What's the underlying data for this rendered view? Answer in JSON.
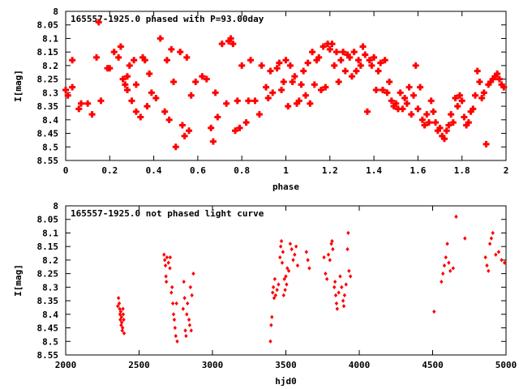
{
  "chart_data": [
    {
      "type": "scatter",
      "title": "165557-1925.0 phased with P=93.00day",
      "xlabel": "phase",
      "ylabel": "I[mag]",
      "xlim": [
        0,
        2
      ],
      "ylim": [
        8.55,
        8
      ],
      "y_inverted": true,
      "grid": false,
      "legend": "none",
      "marker": "filled-plus",
      "color": "#ff0000",
      "x_ticks": [
        {
          "value": 0,
          "label": "0"
        },
        {
          "value": 0.2,
          "label": "0.2"
        },
        {
          "value": 0.4,
          "label": "0.4"
        },
        {
          "value": 0.6,
          "label": "0.6"
        },
        {
          "value": 0.8,
          "label": "0.8"
        },
        {
          "value": 1,
          "label": "1"
        },
        {
          "value": 1.2,
          "label": "1.2"
        },
        {
          "value": 1.4,
          "label": "1.4"
        },
        {
          "value": 1.6,
          "label": "1.6"
        },
        {
          "value": 1.8,
          "label": "1.8"
        },
        {
          "value": 2,
          "label": "2"
        }
      ],
      "y_ticks": [
        {
          "value": 8,
          "label": "8"
        },
        {
          "value": 8.05,
          "label": "8.05"
        },
        {
          "value": 8.1,
          "label": "8.1"
        },
        {
          "value": 8.15,
          "label": "8.15"
        },
        {
          "value": 8.2,
          "label": "8.2"
        },
        {
          "value": 8.25,
          "label": "8.25"
        },
        {
          "value": 8.3,
          "label": "8.3"
        },
        {
          "value": 8.35,
          "label": "8.35"
        },
        {
          "value": 8.4,
          "label": "8.4"
        },
        {
          "value": 8.45,
          "label": "8.45"
        },
        {
          "value": 8.5,
          "label": "8.5"
        },
        {
          "value": 8.55,
          "label": "8.55"
        }
      ],
      "points": [
        [
          0.0,
          8.29
        ],
        [
          0.01,
          8.31
        ],
        [
          0.03,
          8.28
        ],
        [
          0.03,
          8.18
        ],
        [
          0.06,
          8.36
        ],
        [
          0.07,
          8.34
        ],
        [
          0.1,
          8.34
        ],
        [
          0.12,
          8.38
        ],
        [
          0.14,
          8.17
        ],
        [
          0.15,
          8.04
        ],
        [
          0.16,
          8.33
        ],
        [
          0.19,
          8.21
        ],
        [
          0.2,
          8.21
        ],
        [
          0.22,
          8.15
        ],
        [
          0.24,
          8.17
        ],
        [
          0.25,
          8.13
        ],
        [
          0.26,
          8.25
        ],
        [
          0.27,
          8.27
        ],
        [
          0.28,
          8.24
        ],
        [
          0.28,
          8.29
        ],
        [
          0.29,
          8.2
        ],
        [
          0.3,
          8.33
        ],
        [
          0.31,
          8.18
        ],
        [
          0.32,
          8.37
        ],
        [
          0.32,
          8.27
        ],
        [
          0.34,
          8.39
        ],
        [
          0.35,
          8.17
        ],
        [
          0.36,
          8.18
        ],
        [
          0.37,
          8.35
        ],
        [
          0.38,
          8.23
        ],
        [
          0.39,
          8.3
        ],
        [
          0.41,
          8.32
        ],
        [
          0.43,
          8.1
        ],
        [
          0.45,
          8.37
        ],
        [
          0.46,
          8.18
        ],
        [
          0.47,
          8.4
        ],
        [
          0.48,
          8.14
        ],
        [
          0.49,
          8.26
        ],
        [
          0.5,
          8.5
        ],
        [
          0.52,
          8.15
        ],
        [
          0.53,
          8.42
        ],
        [
          0.54,
          8.46
        ],
        [
          0.55,
          8.17
        ],
        [
          0.56,
          8.44
        ],
        [
          0.57,
          8.31
        ],
        [
          0.59,
          8.26
        ],
        [
          0.62,
          8.24
        ],
        [
          0.64,
          8.25
        ],
        [
          0.66,
          8.43
        ],
        [
          0.67,
          8.48
        ],
        [
          0.68,
          8.3
        ],
        [
          0.69,
          8.39
        ],
        [
          0.71,
          8.12
        ],
        [
          0.73,
          8.34
        ],
        [
          0.74,
          8.11
        ],
        [
          0.75,
          8.1
        ],
        [
          0.76,
          8.12
        ],
        [
          0.77,
          8.44
        ],
        [
          0.78,
          8.33
        ],
        [
          0.79,
          8.43
        ],
        [
          0.8,
          8.2
        ],
        [
          0.82,
          8.41
        ],
        [
          0.83,
          8.33
        ],
        [
          0.84,
          8.18
        ],
        [
          0.86,
          8.33
        ],
        [
          0.88,
          8.38
        ],
        [
          0.89,
          8.2
        ],
        [
          0.91,
          8.28
        ],
        [
          0.92,
          8.32
        ],
        [
          0.93,
          8.22
        ],
        [
          0.94,
          8.3
        ],
        [
          0.96,
          8.21
        ],
        [
          0.97,
          8.19
        ],
        [
          0.98,
          8.29
        ],
        [
          0.99,
          8.26
        ],
        [
          1.0,
          8.18
        ],
        [
          1.01,
          8.35
        ],
        [
          1.02,
          8.2
        ],
        [
          1.03,
          8.26
        ],
        [
          1.04,
          8.24
        ],
        [
          1.05,
          8.34
        ],
        [
          1.06,
          8.33
        ],
        [
          1.07,
          8.27
        ],
        [
          1.08,
          8.22
        ],
        [
          1.09,
          8.31
        ],
        [
          1.1,
          8.19
        ],
        [
          1.11,
          8.34
        ],
        [
          1.12,
          8.15
        ],
        [
          1.13,
          8.27
        ],
        [
          1.14,
          8.18
        ],
        [
          1.15,
          8.17
        ],
        [
          1.16,
          8.29
        ],
        [
          1.17,
          8.13
        ],
        [
          1.18,
          8.28
        ],
        [
          1.19,
          8.12
        ],
        [
          1.2,
          8.14
        ],
        [
          1.21,
          8.12
        ],
        [
          1.22,
          8.2
        ],
        [
          1.23,
          8.15
        ],
        [
          1.24,
          8.26
        ],
        [
          1.25,
          8.18
        ],
        [
          1.26,
          8.15
        ],
        [
          1.27,
          8.22
        ],
        [
          1.28,
          8.16
        ],
        [
          1.29,
          8.17
        ],
        [
          1.3,
          8.24
        ],
        [
          1.31,
          8.15
        ],
        [
          1.32,
          8.22
        ],
        [
          1.33,
          8.18
        ],
        [
          1.34,
          8.2
        ],
        [
          1.35,
          8.13
        ],
        [
          1.36,
          8.16
        ],
        [
          1.37,
          8.37
        ],
        [
          1.38,
          8.18
        ],
        [
          1.39,
          8.2
        ],
        [
          1.4,
          8.17
        ],
        [
          1.41,
          8.29
        ],
        [
          1.42,
          8.22
        ],
        [
          1.43,
          8.19
        ],
        [
          1.44,
          8.29
        ],
        [
          1.45,
          8.18
        ],
        [
          1.46,
          8.3
        ],
        [
          1.47,
          8.26
        ],
        [
          1.48,
          8.33
        ],
        [
          1.49,
          8.35
        ],
        [
          1.5,
          8.34
        ],
        [
          1.51,
          8.36
        ],
        [
          1.52,
          8.3
        ],
        [
          1.53,
          8.36
        ],
        [
          1.54,
          8.32
        ],
        [
          1.55,
          8.34
        ],
        [
          1.56,
          8.28
        ],
        [
          1.57,
          8.38
        ],
        [
          1.58,
          8.31
        ],
        [
          1.59,
          8.2
        ],
        [
          1.6,
          8.36
        ],
        [
          1.61,
          8.28
        ],
        [
          1.62,
          8.4
        ],
        [
          1.63,
          8.42
        ],
        [
          1.64,
          8.38
        ],
        [
          1.65,
          8.41
        ],
        [
          1.66,
          8.33
        ],
        [
          1.67,
          8.37
        ],
        [
          1.68,
          8.41
        ],
        [
          1.69,
          8.44
        ],
        [
          1.7,
          8.43
        ],
        [
          1.71,
          8.46
        ],
        [
          1.72,
          8.47
        ],
        [
          1.73,
          8.44
        ],
        [
          1.74,
          8.42
        ],
        [
          1.75,
          8.38
        ],
        [
          1.76,
          8.41
        ],
        [
          1.77,
          8.32
        ],
        [
          1.78,
          8.35
        ],
        [
          1.79,
          8.31
        ],
        [
          1.8,
          8.33
        ],
        [
          1.81,
          8.39
        ],
        [
          1.82,
          8.42
        ],
        [
          1.83,
          8.41
        ],
        [
          1.84,
          8.37
        ],
        [
          1.85,
          8.36
        ],
        [
          1.86,
          8.31
        ],
        [
          1.87,
          8.22
        ],
        [
          1.88,
          8.26
        ],
        [
          1.89,
          8.32
        ],
        [
          1.9,
          8.3
        ],
        [
          1.91,
          8.49
        ],
        [
          1.92,
          8.27
        ],
        [
          1.93,
          8.26
        ],
        [
          1.94,
          8.25
        ],
        [
          1.95,
          8.24
        ],
        [
          1.96,
          8.23
        ],
        [
          1.97,
          8.25
        ],
        [
          1.98,
          8.27
        ],
        [
          1.99,
          8.28
        ]
      ]
    },
    {
      "type": "scatter",
      "title": "165557-1925.0 not phased light curve",
      "xlabel": "hjd0",
      "ylabel": "I[mag]",
      "xlim": [
        2000,
        5000
      ],
      "ylim": [
        8.55,
        8
      ],
      "y_inverted": true,
      "grid": false,
      "legend": "none",
      "marker": "filled-diamond",
      "color": "#ff0000",
      "x_ticks": [
        {
          "value": 2000,
          "label": "2000"
        },
        {
          "value": 2500,
          "label": "2500"
        },
        {
          "value": 3000,
          "label": "3000"
        },
        {
          "value": 3500,
          "label": "3500"
        },
        {
          "value": 4000,
          "label": "4000"
        },
        {
          "value": 4500,
          "label": "4500"
        },
        {
          "value": 5000,
          "label": "5000"
        }
      ],
      "y_ticks": [
        {
          "value": 8,
          "label": "8"
        },
        {
          "value": 8.05,
          "label": "8.05"
        },
        {
          "value": 8.1,
          "label": "8.1"
        },
        {
          "value": 8.15,
          "label": "8.15"
        },
        {
          "value": 8.2,
          "label": "8.2"
        },
        {
          "value": 8.25,
          "label": "8.25"
        },
        {
          "value": 8.3,
          "label": "8.3"
        },
        {
          "value": 8.35,
          "label": "8.35"
        },
        {
          "value": 8.4,
          "label": "8.4"
        },
        {
          "value": 8.45,
          "label": "8.45"
        },
        {
          "value": 8.5,
          "label": "8.5"
        },
        {
          "value": 8.55,
          "label": "8.55"
        }
      ],
      "points": [
        [
          2355,
          8.37
        ],
        [
          2360,
          8.34
        ],
        [
          2365,
          8.36
        ],
        [
          2368,
          8.38
        ],
        [
          2370,
          8.4
        ],
        [
          2372,
          8.42
        ],
        [
          2375,
          8.39
        ],
        [
          2378,
          8.44
        ],
        [
          2380,
          8.41
        ],
        [
          2382,
          8.43
        ],
        [
          2385,
          8.46
        ],
        [
          2388,
          8.45
        ],
        [
          2390,
          8.38
        ],
        [
          2392,
          8.4
        ],
        [
          2395,
          8.42
        ],
        [
          2398,
          8.47
        ],
        [
          2670,
          8.18
        ],
        [
          2675,
          8.2
        ],
        [
          2680,
          8.22
        ],
        [
          2683,
          8.26
        ],
        [
          2686,
          8.28
        ],
        [
          2690,
          8.19
        ],
        [
          2700,
          8.21
        ],
        [
          2710,
          8.23
        ],
        [
          2712,
          8.19
        ],
        [
          2720,
          8.32
        ],
        [
          2725,
          8.3
        ],
        [
          2730,
          8.36
        ],
        [
          2735,
          8.4
        ],
        [
          2740,
          8.42
        ],
        [
          2745,
          8.45
        ],
        [
          2750,
          8.48
        ],
        [
          2755,
          8.36
        ],
        [
          2760,
          8.5
        ],
        [
          2800,
          8.38
        ],
        [
          2805,
          8.28
        ],
        [
          2810,
          8.34
        ],
        [
          2815,
          8.46
        ],
        [
          2820,
          8.48
        ],
        [
          2825,
          8.4
        ],
        [
          2830,
          8.36
        ],
        [
          2840,
          8.42
        ],
        [
          2845,
          8.44
        ],
        [
          2850,
          8.3
        ],
        [
          2855,
          8.46
        ],
        [
          2860,
          8.33
        ],
        [
          2870,
          8.25
        ],
        [
          3395,
          8.5
        ],
        [
          3400,
          8.44
        ],
        [
          3405,
          8.41
        ],
        [
          3410,
          8.32
        ],
        [
          3415,
          8.3
        ],
        [
          3420,
          8.34
        ],
        [
          3425,
          8.27
        ],
        [
          3430,
          8.33
        ],
        [
          3440,
          8.31
        ],
        [
          3450,
          8.29
        ],
        [
          3460,
          8.19
        ],
        [
          3465,
          8.15
        ],
        [
          3470,
          8.13
        ],
        [
          3475,
          8.21
        ],
        [
          3480,
          8.17
        ],
        [
          3485,
          8.33
        ],
        [
          3490,
          8.27
        ],
        [
          3495,
          8.31
        ],
        [
          3500,
          8.26
        ],
        [
          3505,
          8.29
        ],
        [
          3510,
          8.23
        ],
        [
          3520,
          8.24
        ],
        [
          3530,
          8.14
        ],
        [
          3540,
          8.16
        ],
        [
          3550,
          8.2
        ],
        [
          3560,
          8.18
        ],
        [
          3570,
          8.15
        ],
        [
          3580,
          8.22
        ],
        [
          3640,
          8.17
        ],
        [
          3650,
          8.2
        ],
        [
          3660,
          8.23
        ],
        [
          3760,
          8.19
        ],
        [
          3770,
          8.25
        ],
        [
          3780,
          8.27
        ],
        [
          3790,
          8.18
        ],
        [
          3800,
          8.2
        ],
        [
          3810,
          8.14
        ],
        [
          3815,
          8.13
        ],
        [
          3820,
          8.16
        ],
        [
          3830,
          8.3
        ],
        [
          3835,
          8.28
        ],
        [
          3840,
          8.33
        ],
        [
          3845,
          8.36
        ],
        [
          3850,
          8.38
        ],
        [
          3860,
          8.32
        ],
        [
          3870,
          8.26
        ],
        [
          3880,
          8.3
        ],
        [
          3890,
          8.35
        ],
        [
          3895,
          8.37
        ],
        [
          3900,
          8.33
        ],
        [
          3910,
          8.29
        ],
        [
          3920,
          8.16
        ],
        [
          3925,
          8.1
        ],
        [
          3930,
          8.24
        ],
        [
          3940,
          8.26
        ],
        [
          4510,
          8.39
        ],
        [
          4560,
          8.28
        ],
        [
          4570,
          8.25
        ],
        [
          4580,
          8.22
        ],
        [
          4590,
          8.19
        ],
        [
          4600,
          8.14
        ],
        [
          4610,
          8.21
        ],
        [
          4620,
          8.24
        ],
        [
          4640,
          8.23
        ],
        [
          4660,
          8.04
        ],
        [
          4720,
          8.12
        ],
        [
          4860,
          8.19
        ],
        [
          4870,
          8.22
        ],
        [
          4880,
          8.24
        ],
        [
          4890,
          8.14
        ],
        [
          4900,
          8.12
        ],
        [
          4910,
          8.1
        ],
        [
          4930,
          8.18
        ],
        [
          4950,
          8.17
        ],
        [
          4970,
          8.2
        ],
        [
          4990,
          8.21
        ]
      ]
    }
  ]
}
